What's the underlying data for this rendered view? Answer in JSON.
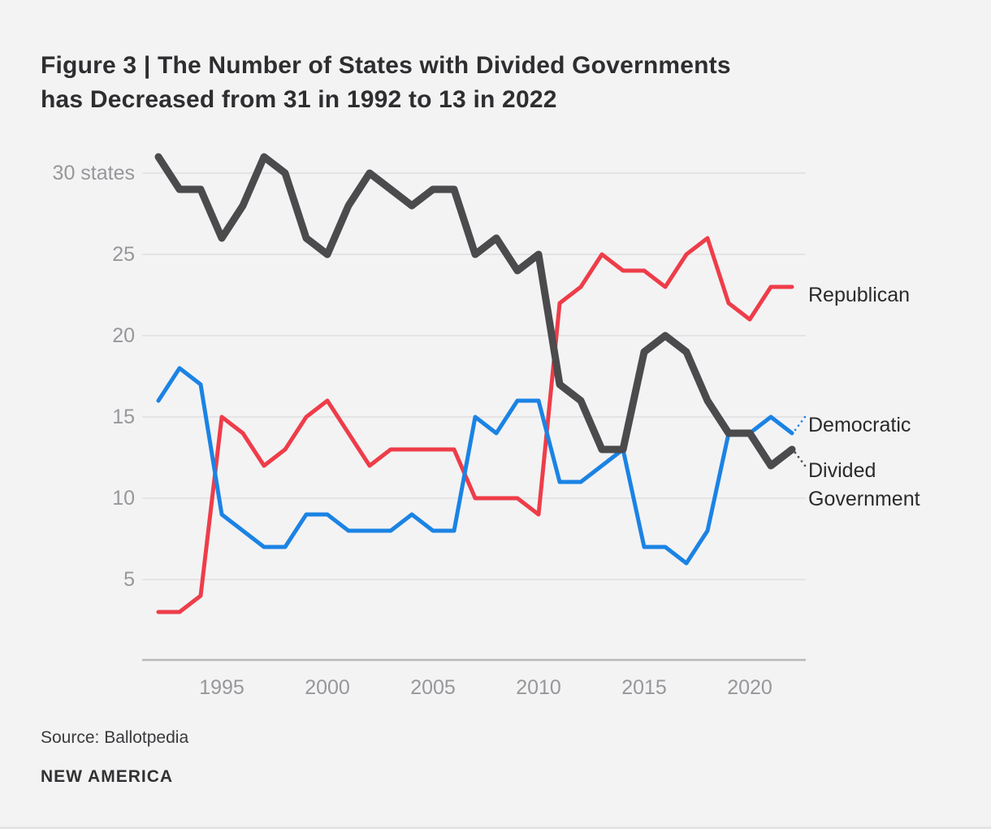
{
  "title": {
    "line1": "Figure 3 | The Number of States with Divided Governments",
    "line2": "has Decreased from 31 in 1992 to 13 in 2022"
  },
  "footer": {
    "source": "Source: Ballotpedia",
    "brand": "NEW AMERICA"
  },
  "colors": {
    "background": "#f3f3f4",
    "title_text": "#2e2e30",
    "axis_text": "#97979b",
    "label_text": "#2b2b2d",
    "gridline": "#e0e0e2",
    "axis_line": "#b9b9bc",
    "republican": "#ee3d49",
    "democratic": "#1b83e4",
    "divided": "#4b4b4d"
  },
  "chart_data": {
    "type": "line",
    "title": "The Number of States with Divided Governments has Decreased from 31 in 1992 to 13 in 2022",
    "xlabel": "",
    "ylabel": "states",
    "x": [
      1992,
      1993,
      1994,
      1995,
      1996,
      1997,
      1998,
      1999,
      2000,
      2001,
      2002,
      2003,
      2004,
      2005,
      2006,
      2007,
      2008,
      2009,
      2010,
      2011,
      2012,
      2013,
      2014,
      2015,
      2016,
      2017,
      2018,
      2019,
      2020,
      2021,
      2022
    ],
    "series": [
      {
        "name": "Republican",
        "color_key": "republican",
        "stroke_width": 5,
        "values": [
          3,
          3,
          4,
          15,
          14,
          12,
          13,
          15,
          16,
          14,
          12,
          13,
          13,
          13,
          13,
          10,
          10,
          10,
          9,
          22,
          23,
          25,
          24,
          24,
          23,
          25,
          26,
          22,
          21,
          23,
          23
        ]
      },
      {
        "name": "Democratic",
        "color_key": "democratic",
        "stroke_width": 5,
        "values": [
          16,
          18,
          17,
          9,
          8,
          7,
          7,
          9,
          9,
          8,
          8,
          8,
          9,
          8,
          8,
          15,
          14,
          16,
          16,
          11,
          11,
          12,
          13,
          7,
          7,
          6,
          8,
          14,
          14,
          15,
          14
        ]
      },
      {
        "name": "Divided Government",
        "color_key": "divided",
        "stroke_width": 9,
        "values": [
          31,
          29,
          29,
          26,
          28,
          31,
          30,
          26,
          25,
          28,
          30,
          29,
          28,
          29,
          29,
          25,
          26,
          24,
          25,
          17,
          16,
          13,
          13,
          19,
          20,
          19,
          16,
          14,
          14,
          12,
          13
        ]
      }
    ],
    "y_ticks": [
      5,
      10,
      15,
      20,
      25,
      30
    ],
    "y_tick_labels": [
      "5",
      "10",
      "15",
      "20",
      "25",
      "30 states"
    ],
    "x_ticks": [
      1995,
      2000,
      2005,
      2010,
      2015,
      2020
    ],
    "x_tick_labels": [
      "1995",
      "2000",
      "2005",
      "2010",
      "2015",
      "2020"
    ],
    "ylim": [
      0,
      31.5
    ],
    "grid": "horizontal-only",
    "legend_position": "right-of-line-ends",
    "leaders": [
      {
        "series": "democratic",
        "direction": -1
      },
      {
        "series": "divided",
        "direction": 1
      }
    ]
  }
}
